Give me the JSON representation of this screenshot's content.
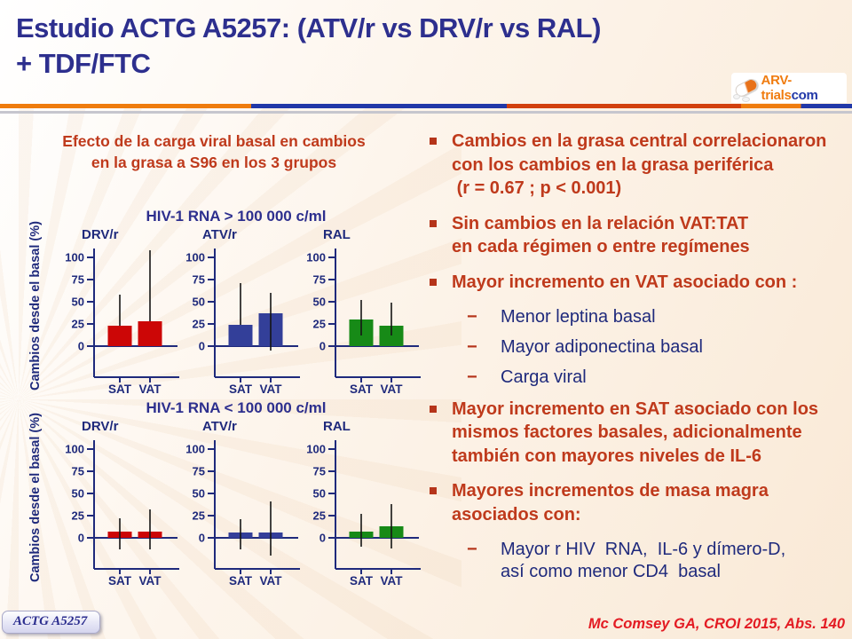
{
  "header": {
    "title": "Estudio ACTG A5257: (ATV/r vs DRV/r vs RAL)\n+ TDF/FTC",
    "logo": {
      "text_main": "ARV-trials",
      "text_suffix": "com",
      "icon": "pill-icon"
    }
  },
  "left_panel": {
    "title": "Efecto de la carga viral basal en cambios\nen la grasa  a S96 en los 3 grupos"
  },
  "chart_data": [
    {
      "type": "bar",
      "title": "HIV-1 RNA > 100 000 c/ml",
      "ylabel": "Cambios desde el basal (%)",
      "ylim": [
        -35,
        112
      ],
      "yticks": [
        0,
        25,
        50,
        75,
        100
      ],
      "categories": [
        "SAT",
        "VAT"
      ],
      "panels": [
        {
          "drug": "DRV/r",
          "bar_color": "#cc0606",
          "values": [
            23,
            28
          ],
          "whisker_low": [
            23,
            28
          ],
          "whisker_high": [
            58,
            108
          ]
        },
        {
          "drug": "ATV/r",
          "bar_color": "#333f99",
          "values": [
            24,
            37
          ],
          "whisker_low": [
            24,
            -5
          ],
          "whisker_high": [
            71,
            60
          ]
        },
        {
          "drug": "RAL",
          "bar_color": "#178a17",
          "values": [
            30,
            23
          ],
          "whisker_low": [
            12,
            12
          ],
          "whisker_high": [
            52,
            49
          ]
        }
      ]
    },
    {
      "type": "bar",
      "title": "HIV-1 RNA < 100 000 c/ml",
      "ylabel": "Cambios desde el basal (%)",
      "ylim": [
        -35,
        112
      ],
      "yticks": [
        0,
        25,
        50,
        75,
        100
      ],
      "categories": [
        "SAT",
        "VAT"
      ],
      "panels": [
        {
          "drug": "DRV/r",
          "bar_color": "#cc0606",
          "values": [
            7,
            7
          ],
          "whisker_low": [
            -13,
            -13
          ],
          "whisker_high": [
            22,
            32
          ]
        },
        {
          "drug": "ATV/r",
          "bar_color": "#333f99",
          "values": [
            6,
            6
          ],
          "whisker_low": [
            -13,
            -20
          ],
          "whisker_high": [
            21,
            41
          ]
        },
        {
          "drug": "RAL",
          "bar_color": "#178a17",
          "values": [
            7,
            13
          ],
          "whisker_low": [
            -10,
            -12
          ],
          "whisker_high": [
            27,
            38
          ]
        }
      ]
    }
  ],
  "bullets": [
    {
      "text": "Cambios en la grasa central correlacionaron\ncon los cambios en la grasa periférica\n (r = 0.67 ; p < 0.001)"
    },
    {
      "text": "Sin cambios en la relación VAT:TAT\nen cada régimen o entre regímenes"
    },
    {
      "text": "Mayor incremento en VAT asociado con :",
      "subs": [
        "Menor leptina basal",
        "Mayor adiponectina basal",
        "Carga viral"
      ]
    },
    {
      "text": "Mayor incremento en SAT asociado con los\nmismos factores basales, adicionalmente\ntambién con mayores niveles de IL-6"
    },
    {
      "text": "Mayores incrementos de masa magra\nasociados con:",
      "subs": [
        "Mayor r HIV  RNA,  IL-6 y dímero-D,\nasí como menor CD4  basal"
      ]
    }
  ],
  "footer": {
    "badge": "ACTG A5257",
    "citation": "Mc Comsey GA, CROI 2015, Abs. 140"
  },
  "colors": {
    "title_navy": "#2d2f8e",
    "chart_navy": "#1f2a7c",
    "accent_red": "#bf3a1c",
    "bar_red": "#cc0606",
    "bar_blue": "#333f99",
    "bar_green": "#178a17",
    "citation_red": "#e31b23",
    "rule_orange": "#ef7c0e",
    "rule_blue": "#2138a8",
    "rule_red": "#d2400e"
  }
}
